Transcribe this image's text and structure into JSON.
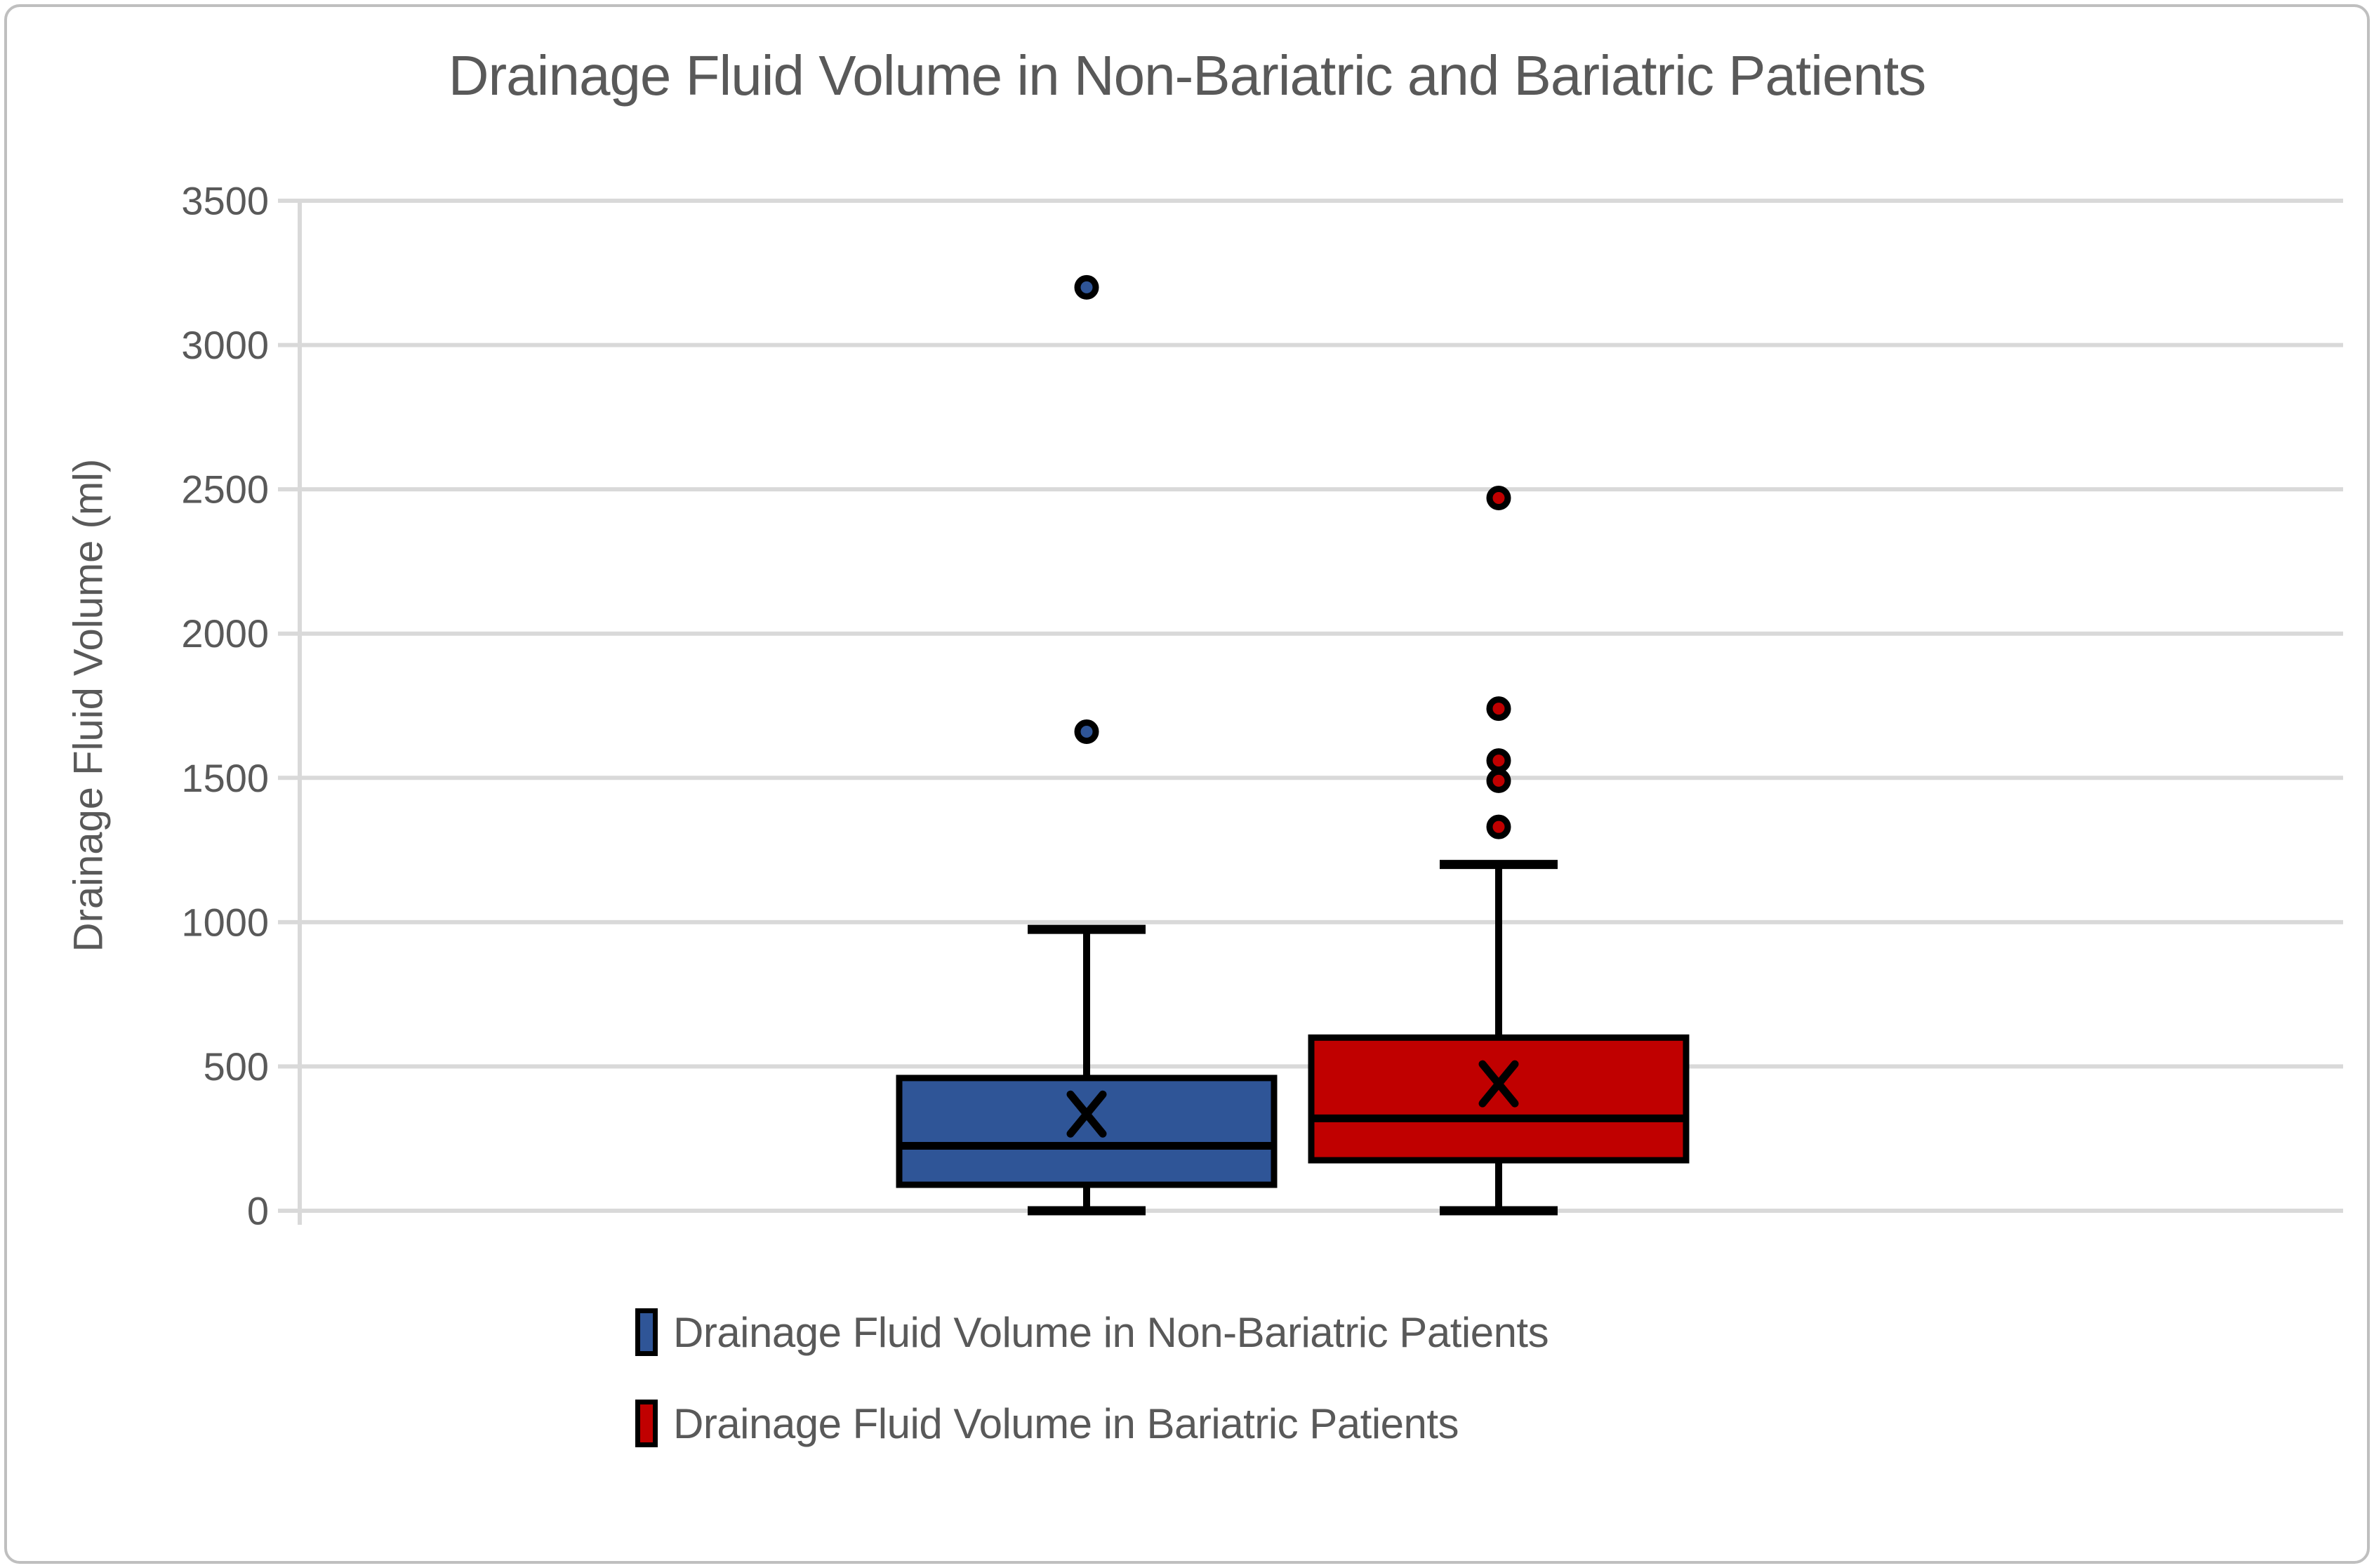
{
  "chart": {
    "background": "#FFFFFF",
    "border_color": "#BFBFBF",
    "grid_color": "#D9D9D9",
    "text_color": "#595959"
  },
  "chart_data": {
    "type": "boxplot",
    "title": "Drainage Fluid Volume in Non-Bariatric and Bariatric Patients",
    "ylabel": "Drainage Fluid Volume (ml)",
    "ylim": [
      0,
      3500
    ],
    "yticks": [
      0,
      500,
      1000,
      1500,
      2000,
      2500,
      3000,
      3500
    ],
    "grid": true,
    "legend_position": "bottom",
    "series": [
      {
        "name": "Drainage Fluid Volume in Non-Bariatric Patients",
        "color": "#2F5597",
        "whisker_low": 0,
        "q1": 90,
        "median": 225,
        "q3": 460,
        "whisker_high": 975,
        "mean": 335,
        "outliers": [
          1660,
          3200
        ]
      },
      {
        "name": "Drainage Fluid Volume in Bariatric Patients",
        "color": "#C00000",
        "whisker_low": 0,
        "q1": 175,
        "median": 320,
        "q3": 600,
        "whisker_high": 1200,
        "mean": 440,
        "outliers": [
          1330,
          1490,
          1560,
          1740,
          2470
        ]
      }
    ]
  }
}
